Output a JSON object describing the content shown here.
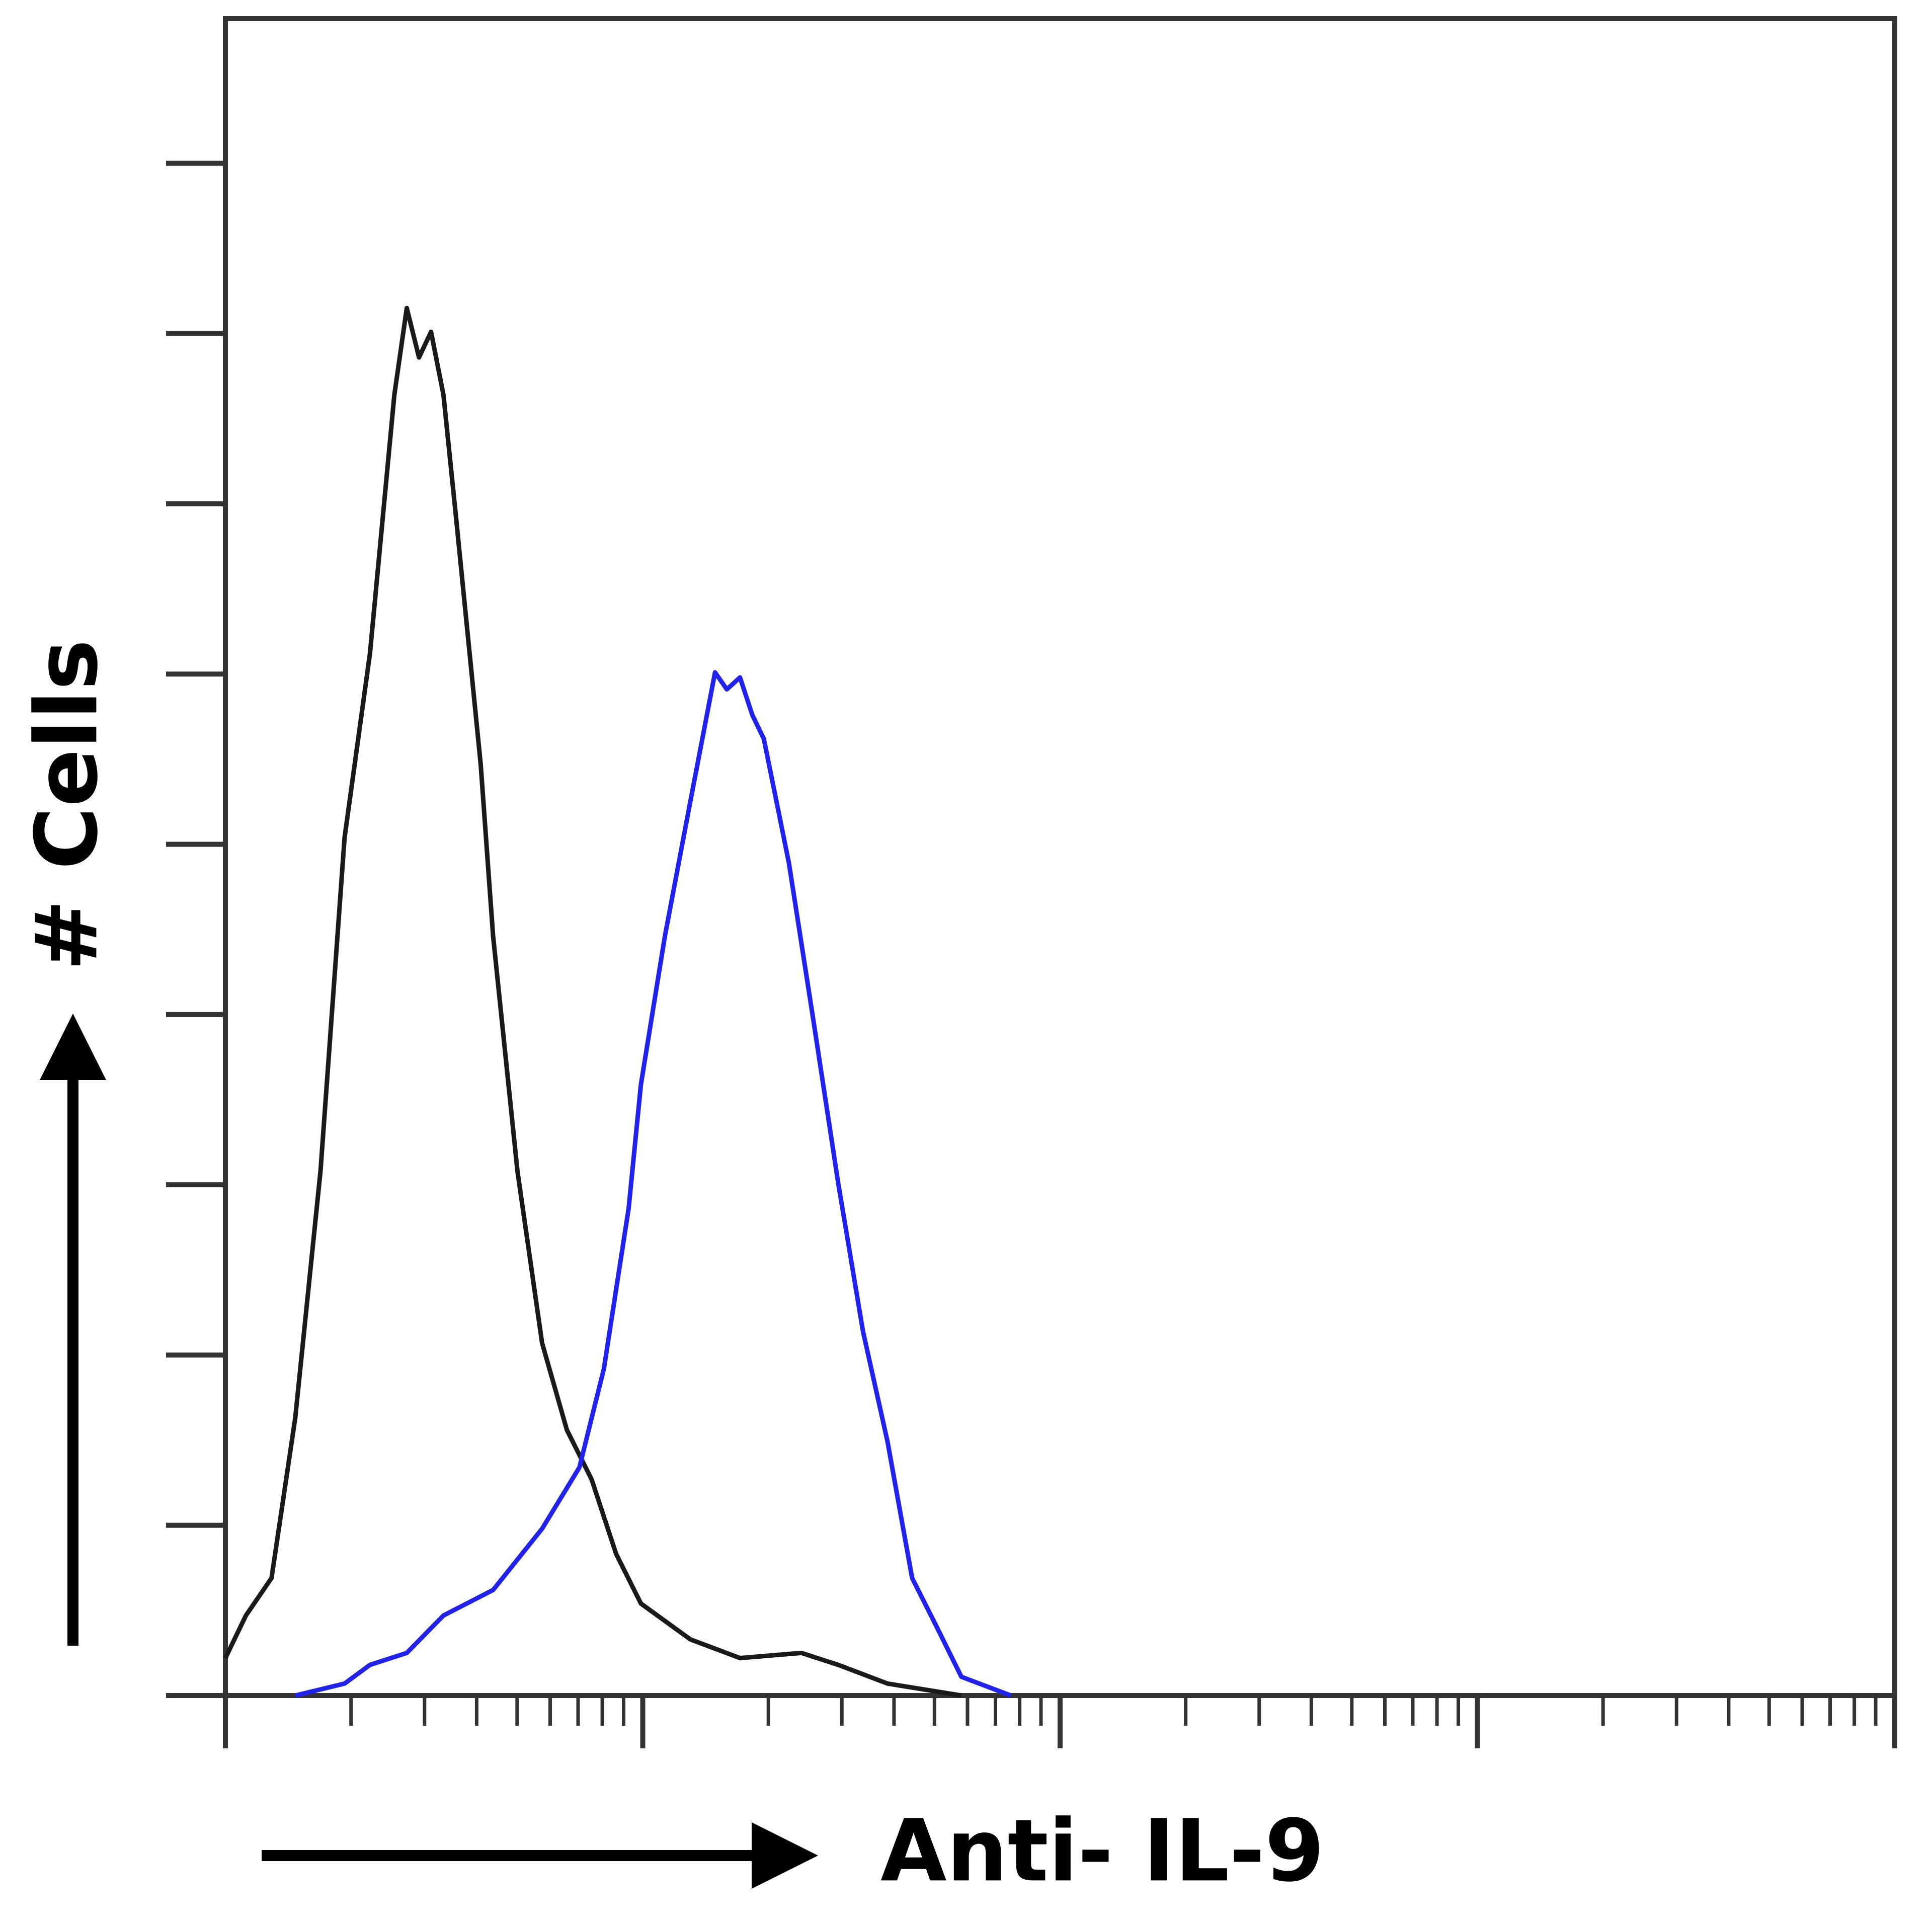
{
  "chart_data": {
    "type": "line",
    "xlabel": "Anti- IL-9",
    "ylabel": "# Cells",
    "xscale": "log",
    "xlim": [
      1,
      10000
    ],
    "ylim": [
      0,
      9.85
    ],
    "xticks": [
      1,
      2,
      3,
      4,
      5,
      6,
      7,
      8,
      9,
      10,
      20,
      30,
      40,
      50,
      60,
      70,
      80,
      90,
      100,
      200,
      300,
      400,
      500,
      600,
      700,
      800,
      900,
      1000,
      2000,
      3000,
      4000,
      5000,
      6000,
      7000,
      8000,
      9000,
      10000
    ],
    "yticks": [
      0,
      1,
      2,
      3,
      4,
      5,
      6,
      7,
      8,
      9
    ],
    "grid": false,
    "series": [
      {
        "color": "#1a1a1a",
        "x": [
          1.0,
          1.12,
          1.29,
          1.47,
          1.69,
          1.93,
          2.22,
          2.54,
          2.72,
          2.91,
          3.11,
          3.33,
          3.57,
          4.09,
          4.38,
          5.01,
          5.74,
          6.58,
          7.54,
          8.64,
          9.9,
          13.0,
          17.1,
          24.0,
          29.4,
          38.6,
          58.0
        ],
        "values": [
          0.22,
          0.47,
          0.69,
          1.63,
          3.08,
          5.04,
          6.12,
          7.64,
          8.15,
          7.86,
          8.01,
          7.64,
          6.92,
          5.47,
          4.46,
          3.08,
          2.07,
          1.56,
          1.27,
          0.83,
          0.54,
          0.33,
          0.22,
          0.25,
          0.18,
          0.07,
          0
        ]
      },
      {
        "color": "#2222ee",
        "x": [
          1.47,
          1.93,
          2.22,
          2.72,
          3.33,
          4.38,
          5.74,
          7.05,
          8.07,
          9.25,
          9.9,
          11.3,
          13.0,
          14.9,
          15.9,
          17.1,
          18.3,
          19.5,
          22.4,
          25.7,
          29.4,
          33.7,
          38.6,
          44.2,
          50.7,
          58.0,
          76.2
        ],
        "values": [
          0,
          0.07,
          0.18,
          0.25,
          0.47,
          0.62,
          0.98,
          1.34,
          1.92,
          2.86,
          3.59,
          4.46,
          5.25,
          6.01,
          5.91,
          5.98,
          5.76,
          5.62,
          4.89,
          3.95,
          3.01,
          2.14,
          1.49,
          0.69,
          0.4,
          0.11,
          0
        ]
      }
    ]
  }
}
